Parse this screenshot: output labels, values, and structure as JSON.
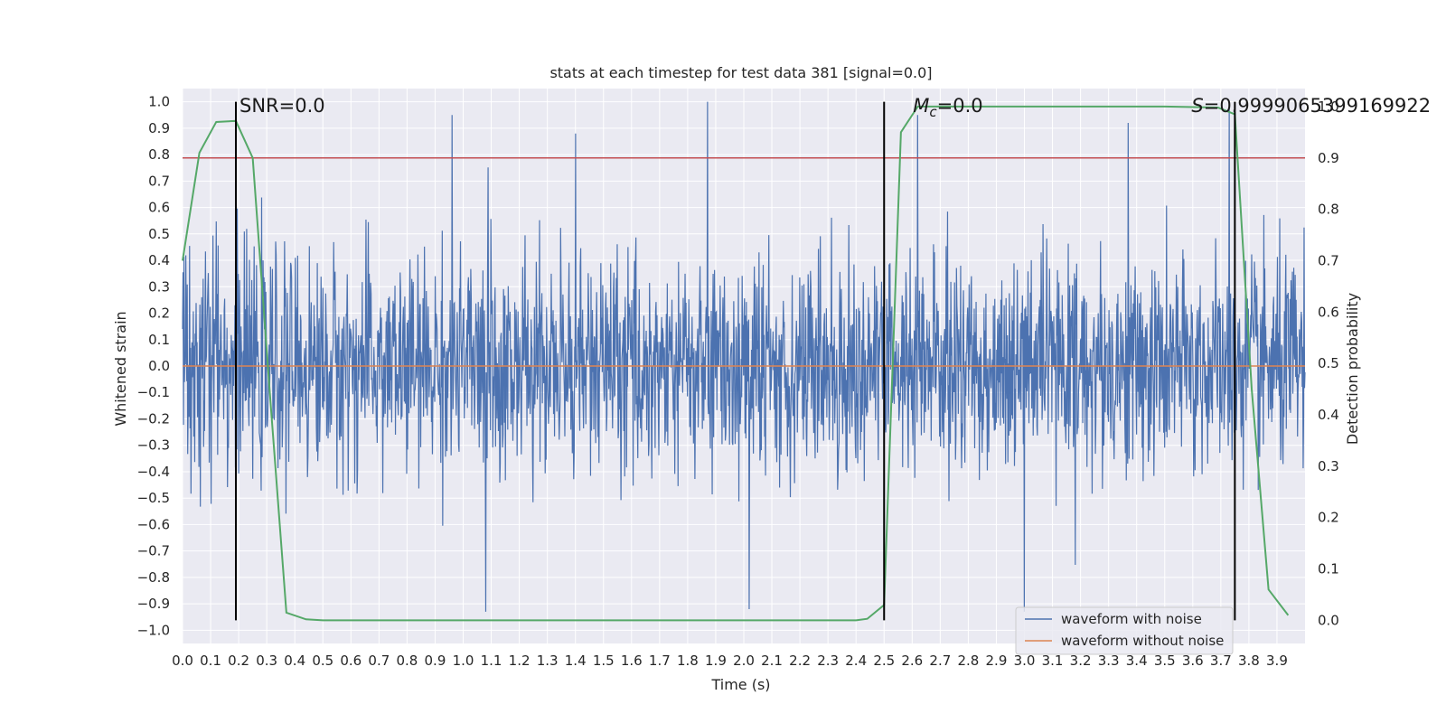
{
  "chart_data": {
    "type": "line",
    "title": "stats at each timestep for test data 381 [signal=0.0]",
    "xlabel": "Time (s)",
    "ylabel": "Whitened strain",
    "y2label": "Detection probability",
    "xlim": [
      0.0,
      4.0
    ],
    "ylim": [
      -1.05,
      1.05
    ],
    "y2lim": [
      -0.045,
      1.035
    ],
    "xticks": [
      "0.0",
      "0.1",
      "0.2",
      "0.3",
      "0.4",
      "0.5",
      "0.6",
      "0.7",
      "0.8",
      "0.9",
      "1.0",
      "1.1",
      "1.2",
      "1.3",
      "1.4",
      "1.5",
      "1.6",
      "1.7",
      "1.8",
      "1.9",
      "2.0",
      "2.1",
      "2.2",
      "2.3",
      "2.4",
      "2.5",
      "2.6",
      "2.7",
      "2.8",
      "2.9",
      "3.0",
      "3.1",
      "3.2",
      "3.3",
      "3.4",
      "3.5",
      "3.6",
      "3.7",
      "3.8",
      "3.9"
    ],
    "yticks": [
      "1.0",
      "0.9",
      "0.8",
      "0.7",
      "0.6",
      "0.5",
      "0.4",
      "0.3",
      "0.2",
      "0.1",
      "0.0",
      "−0.1",
      "−0.2",
      "−0.3",
      "−0.4",
      "−0.5",
      "−0.6",
      "−0.7",
      "−0.8",
      "−0.9",
      "−1.0"
    ],
    "y2ticks": [
      "1.0",
      "0.9",
      "0.8",
      "0.7",
      "0.6",
      "0.5",
      "0.4",
      "0.3",
      "0.2",
      "0.1",
      "0.0"
    ],
    "grid": true,
    "legend_position": "lower-right",
    "annotations": [
      {
        "text": "SNR=0.0",
        "x": 0.19
      },
      {
        "text": "Mc=0.0",
        "x": 2.5
      },
      {
        "text": "S=0.9999065399169922",
        "x": 3.75
      }
    ],
    "vertical_lines": [
      0.19,
      2.5,
      3.75
    ],
    "threshold_probability": 0.9,
    "series": [
      {
        "name": "waveform with noise",
        "color": "#4c72b0",
        "axis": "left",
        "note": "dense noise, amplitude mostly within ±0.5 with spikes to ±1.0",
        "spikes": [
          [
            0.96,
            0.95
          ],
          [
            1.4,
            0.88
          ],
          [
            1.87,
            1.0
          ],
          [
            2.62,
            0.95
          ],
          [
            3.37,
            0.92
          ],
          [
            3.73,
            0.98
          ],
          [
            1.08,
            -0.93
          ],
          [
            2.02,
            -0.92
          ],
          [
            3.0,
            -0.93
          ]
        ]
      },
      {
        "name": "waveform without noise",
        "color": "#dd8452",
        "axis": "left",
        "x": [
          0.0,
          4.0
        ],
        "y": [
          0.0,
          0.0
        ]
      },
      {
        "name": "detection probability",
        "color": "#55a868",
        "axis": "right",
        "x": [
          0.0,
          0.06,
          0.12,
          0.19,
          0.25,
          0.31,
          0.37,
          0.44,
          0.5,
          1.0,
          1.5,
          2.0,
          2.4,
          2.44,
          2.5,
          2.56,
          2.62,
          2.69,
          3.0,
          3.5,
          3.69,
          3.75,
          3.81,
          3.87,
          3.94
        ],
        "y": [
          0.7,
          0.91,
          0.97,
          0.972,
          0.9,
          0.45,
          0.015,
          0.002,
          0.0,
          0.0,
          0.0,
          0.0,
          0.0,
          0.003,
          0.03,
          0.95,
          1.0,
          1.0,
          1.0,
          1.0,
          0.998,
          0.985,
          0.45,
          0.06,
          0.01
        ]
      }
    ]
  }
}
